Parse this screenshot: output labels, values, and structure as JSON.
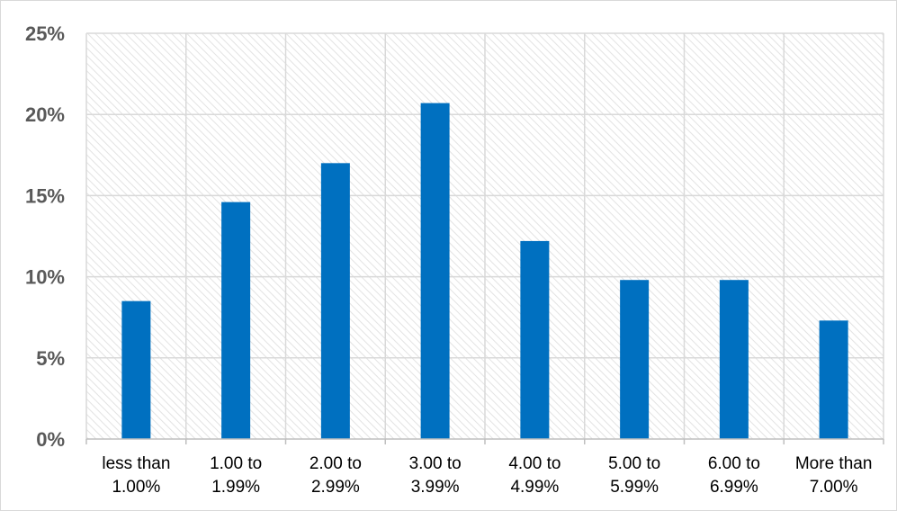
{
  "chart_data": {
    "type": "bar",
    "categories": [
      [
        "less than",
        "1.00%"
      ],
      [
        "1.00 to",
        "1.99%"
      ],
      [
        "2.00 to",
        "2.99%"
      ],
      [
        "3.00 to",
        "3.99%"
      ],
      [
        "4.00 to",
        "4.99%"
      ],
      [
        "5.00 to",
        "5.99%"
      ],
      [
        "6.00 to",
        "6.99%"
      ],
      [
        "More than",
        "7.00%"
      ]
    ],
    "values": [
      8.5,
      14.6,
      17.0,
      20.7,
      12.2,
      9.8,
      9.8,
      7.3
    ],
    "yticks": [
      "0%",
      "5%",
      "10%",
      "15%",
      "20%",
      "25%"
    ],
    "ylim": [
      0,
      25
    ],
    "title": "",
    "xlabel": "",
    "ylabel": "",
    "grid": true,
    "bar_color": "#0070c0",
    "grid_color": "#d9d9d9"
  }
}
